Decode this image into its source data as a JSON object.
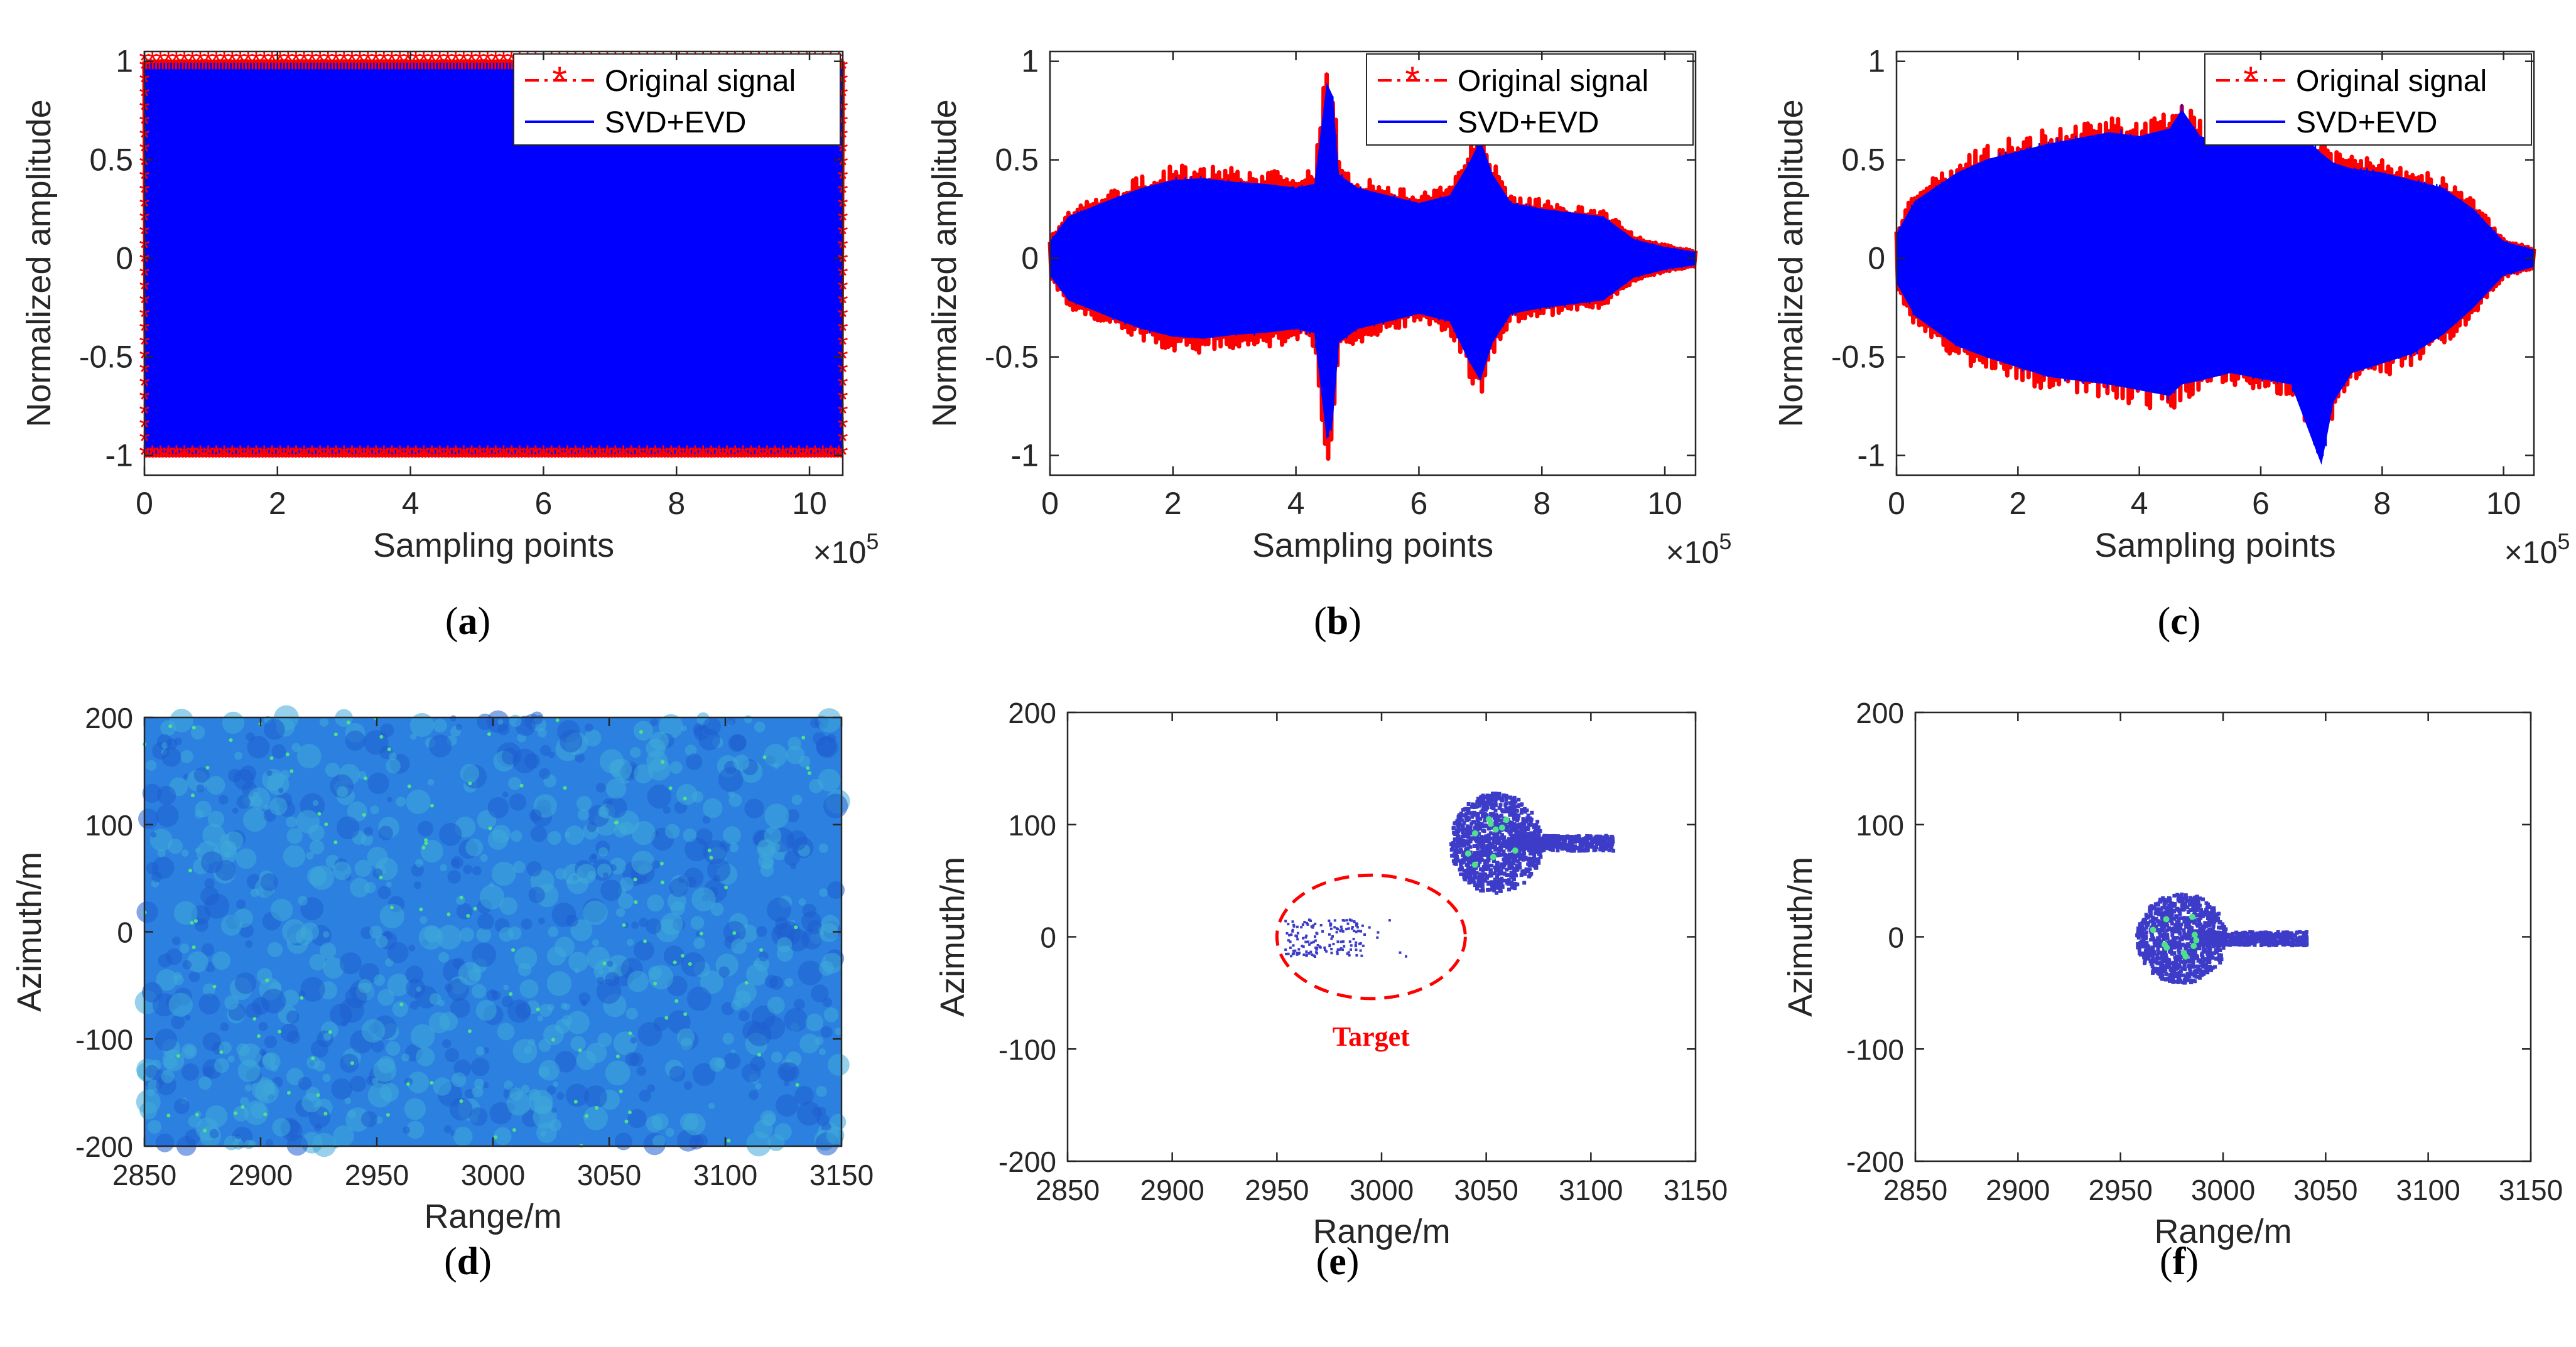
{
  "colors": {
    "original": "#ff0000",
    "svd_evd": "#0000ff",
    "axis": "#262626",
    "map_bg": "#2b80e0",
    "map_hi": "#4fe08a",
    "target_blob": "#3c3cc8",
    "annotation": "#ff0000"
  },
  "chart_data": [
    {
      "id": "a",
      "type": "line",
      "caption_letter": "a",
      "xlabel": "Sampling points",
      "ylabel": "Normalized amplitude",
      "exponent": "×10",
      "exponent_power": "5",
      "xlim": [
        0,
        10.5
      ],
      "ylim": [
        -1.1,
        1.05
      ],
      "xticks": [
        0,
        2,
        4,
        6,
        8,
        10
      ],
      "xtick_labels": [
        "0",
        "2",
        "4",
        "6",
        "8",
        "10"
      ],
      "yticks": [
        -1,
        -0.5,
        0,
        0.5,
        1
      ],
      "ytick_labels": [
        "-1",
        "-0.5",
        "0",
        "0.5",
        "1"
      ],
      "legend": [
        "Original signal",
        "SVD+EVD"
      ],
      "legend_position": "top-right",
      "series": [
        {
          "name": "Original signal",
          "x": [
            0,
            1,
            2,
            3,
            4,
            5,
            6,
            7,
            8,
            9,
            10,
            10.5
          ],
          "upper": [
            1,
            1,
            1,
            1,
            1,
            1,
            1,
            1,
            1,
            1,
            1,
            1
          ],
          "lower": [
            -1,
            -1,
            -1,
            -1,
            -1,
            -1,
            -1,
            -1,
            -1,
            -1,
            -1,
            -1
          ]
        },
        {
          "name": "SVD+EVD",
          "x": [
            0,
            1,
            2,
            3,
            4,
            5,
            6,
            7,
            8,
            9,
            10,
            10.5
          ],
          "upper": [
            0.99,
            0.99,
            0.99,
            0.99,
            0.99,
            0.99,
            0.99,
            0.99,
            0.99,
            0.99,
            0.99,
            0.99
          ],
          "lower": [
            -0.99,
            -0.99,
            -0.99,
            -0.99,
            -0.99,
            -0.99,
            -0.99,
            -0.99,
            -0.99,
            -0.99,
            -0.99,
            -0.99
          ]
        }
      ]
    },
    {
      "id": "b",
      "type": "line",
      "caption_letter": "b",
      "xlabel": "Sampling points",
      "ylabel": "Normalized amplitude",
      "exponent": "×10",
      "exponent_power": "5",
      "xlim": [
        0,
        10.5
      ],
      "ylim": [
        -1.1,
        1.05
      ],
      "xticks": [
        0,
        2,
        4,
        6,
        8,
        10
      ],
      "xtick_labels": [
        "0",
        "2",
        "4",
        "6",
        "8",
        "10"
      ],
      "yticks": [
        -1,
        -0.5,
        0,
        0.5,
        1
      ],
      "ytick_labels": [
        "-1",
        "-0.5",
        "0",
        "0.5",
        "1"
      ],
      "legend": [
        "Original signal",
        "SVD+EVD"
      ],
      "legend_position": "top-right",
      "series": [
        {
          "name": "Original signal",
          "x": [
            0,
            0.3,
            1,
            1.5,
            2,
            2.5,
            3,
            3.5,
            4,
            4.3,
            4.5,
            4.6,
            4.7,
            5,
            5.5,
            6,
            6.5,
            6.8,
            7,
            7.2,
            7.5,
            8,
            8.5,
            9,
            9.5,
            10,
            10.5
          ],
          "upper": [
            0.1,
            0.25,
            0.35,
            0.42,
            0.47,
            0.48,
            0.46,
            0.45,
            0.43,
            0.45,
            1.02,
            0.95,
            0.5,
            0.43,
            0.38,
            0.33,
            0.38,
            0.55,
            0.7,
            0.5,
            0.33,
            0.3,
            0.27,
            0.25,
            0.12,
            0.07,
            0.04
          ],
          "lower": [
            -0.1,
            -0.25,
            -0.35,
            -0.42,
            -0.47,
            -0.48,
            -0.46,
            -0.45,
            -0.43,
            -0.45,
            -1.05,
            -0.95,
            -0.5,
            -0.43,
            -0.38,
            -0.33,
            -0.38,
            -0.6,
            -0.72,
            -0.5,
            -0.33,
            -0.3,
            -0.27,
            -0.25,
            -0.12,
            -0.07,
            -0.04
          ]
        },
        {
          "name": "SVD+EVD",
          "x": [
            0,
            0.3,
            1,
            1.5,
            2,
            2.5,
            3,
            3.5,
            4,
            4.3,
            4.5,
            4.6,
            4.7,
            5,
            5.5,
            6,
            6.5,
            6.8,
            7,
            7.2,
            7.5,
            8,
            8.5,
            9,
            9.5,
            10,
            10.5
          ],
          "upper": [
            0.09,
            0.22,
            0.31,
            0.37,
            0.41,
            0.42,
            0.4,
            0.39,
            0.37,
            0.39,
            0.92,
            0.85,
            0.44,
            0.37,
            0.33,
            0.29,
            0.33,
            0.49,
            0.62,
            0.44,
            0.29,
            0.26,
            0.24,
            0.22,
            0.1,
            0.06,
            0.035
          ],
          "lower": [
            -0.09,
            -0.22,
            -0.31,
            -0.37,
            -0.41,
            -0.42,
            -0.4,
            -0.39,
            -0.37,
            -0.39,
            -0.95,
            -0.85,
            -0.44,
            -0.37,
            -0.33,
            -0.29,
            -0.33,
            -0.53,
            -0.64,
            -0.44,
            -0.29,
            -0.26,
            -0.24,
            -0.22,
            -0.1,
            -0.06,
            -0.035
          ]
        }
      ]
    },
    {
      "id": "c",
      "type": "line",
      "caption_letter": "c",
      "xlabel": "Sampling points",
      "ylabel": "Normalized amplitude",
      "exponent": "×10",
      "exponent_power": "5",
      "xlim": [
        0,
        10.5
      ],
      "ylim": [
        -1.1,
        1.05
      ],
      "xticks": [
        0,
        2,
        4,
        6,
        8,
        10
      ],
      "xtick_labels": [
        "0",
        "2",
        "4",
        "6",
        "8",
        "10"
      ],
      "yticks": [
        -1,
        -0.5,
        0,
        0.5,
        1
      ],
      "ytick_labels": [
        "-1",
        "-0.5",
        "0",
        "0.5",
        "1"
      ],
      "legend": [
        "Original signal",
        "SVD+EVD"
      ],
      "legend_position": "top-right",
      "series": [
        {
          "name": "Original signal",
          "x": [
            0,
            0.3,
            1,
            1.5,
            2,
            2.5,
            3,
            3.5,
            4,
            4.5,
            4.7,
            5,
            5.5,
            6,
            6.5,
            7,
            7.2,
            7.5,
            8,
            8.5,
            9,
            9.5,
            10,
            10.5
          ],
          "upper": [
            0.15,
            0.35,
            0.5,
            0.58,
            0.62,
            0.66,
            0.7,
            0.72,
            0.7,
            0.74,
            0.8,
            0.7,
            0.65,
            0.72,
            0.76,
            0.6,
            0.55,
            0.52,
            0.5,
            0.46,
            0.42,
            0.3,
            0.1,
            0.05
          ],
          "lower": [
            -0.15,
            -0.35,
            -0.52,
            -0.58,
            -0.63,
            -0.68,
            -0.7,
            -0.72,
            -0.75,
            -0.78,
            -0.72,
            -0.7,
            -0.65,
            -0.68,
            -0.72,
            -0.95,
            -0.8,
            -0.65,
            -0.6,
            -0.55,
            -0.45,
            -0.3,
            -0.1,
            -0.05
          ]
        },
        {
          "name": "SVD+EVD",
          "x": [
            0,
            0.3,
            1,
            1.5,
            2,
            2.5,
            3,
            3.5,
            4,
            4.5,
            4.7,
            5,
            5.5,
            6,
            6.5,
            7,
            7.2,
            7.5,
            8,
            8.5,
            9,
            9.5,
            10,
            10.5
          ],
          "upper": [
            0.13,
            0.3,
            0.45,
            0.52,
            0.56,
            0.6,
            0.63,
            0.66,
            0.64,
            0.68,
            0.78,
            0.64,
            0.6,
            0.66,
            0.7,
            0.55,
            0.5,
            0.47,
            0.45,
            0.41,
            0.37,
            0.26,
            0.09,
            0.045
          ],
          "lower": [
            -0.13,
            -0.3,
            -0.46,
            -0.52,
            -0.57,
            -0.62,
            -0.64,
            -0.66,
            -0.69,
            -0.72,
            -0.66,
            -0.64,
            -0.6,
            -0.63,
            -0.66,
            -1.08,
            -0.75,
            -0.6,
            -0.55,
            -0.5,
            -0.4,
            -0.26,
            -0.09,
            -0.045
          ]
        }
      ]
    },
    {
      "id": "d",
      "type": "heatmap",
      "caption_letter": "d",
      "xlabel": "Range/m",
      "ylabel": "Azimuth/m",
      "xlim": [
        2850,
        3150
      ],
      "ylim": [
        -200,
        200
      ],
      "xticks": [
        2850,
        2900,
        2950,
        3000,
        3050,
        3100,
        3150
      ],
      "xtick_labels": [
        "2850",
        "2900",
        "2950",
        "3000",
        "3050",
        "3100",
        "3150"
      ],
      "yticks": [
        -200,
        -100,
        0,
        100,
        200
      ],
      "ytick_labels": [
        "-200",
        "-100",
        "0",
        "100",
        "200"
      ],
      "description": "uniform clutter background"
    },
    {
      "id": "e",
      "type": "heatmap",
      "caption_letter": "e",
      "xlabel": "Range/m",
      "ylabel": "Azimuth/m",
      "xlim": [
        2850,
        3150
      ],
      "ylim": [
        -200,
        200
      ],
      "xticks": [
        2850,
        2900,
        2950,
        3000,
        3050,
        3100,
        3150
      ],
      "xtick_labels": [
        "2850",
        "2900",
        "2950",
        "3000",
        "3050",
        "3100",
        "3150"
      ],
      "yticks": [
        -200,
        -100,
        0,
        100,
        200
      ],
      "ytick_labels": [
        "-200",
        "-100",
        "0",
        "100",
        "200"
      ],
      "annotation": "Target",
      "blobs": [
        {
          "center": [
            3060,
            85
          ],
          "range_extent": [
            3030,
            3110
          ],
          "azimuth_extent": [
            40,
            130
          ]
        },
        {
          "center": [
            2985,
            0
          ],
          "range_extent": [
            2962,
            3025
          ],
          "azimuth_extent": [
            -15,
            18
          ]
        }
      ],
      "ellipse": {
        "center": [
          2995,
          0
        ],
        "half_range": 45,
        "half_azimuth": 55
      }
    },
    {
      "id": "f",
      "type": "heatmap",
      "caption_letter": "f",
      "xlabel": "Range/m",
      "ylabel": "Azimuth/m",
      "xlim": [
        2850,
        3150
      ],
      "ylim": [
        -200,
        200
      ],
      "xticks": [
        2850,
        2900,
        2950,
        3000,
        3050,
        3100,
        3150
      ],
      "xtick_labels": [
        "2850",
        "2900",
        "2950",
        "3000",
        "3050",
        "3100",
        "3150"
      ],
      "yticks": [
        -200,
        -100,
        0,
        100,
        200
      ],
      "ytick_labels": [
        "-200",
        "-100",
        "0",
        "100",
        "200"
      ],
      "blobs": [
        {
          "center": [
            2985,
            0
          ],
          "range_extent": [
            2960,
            3040
          ],
          "azimuth_extent": [
            -40,
            40
          ]
        }
      ]
    }
  ]
}
